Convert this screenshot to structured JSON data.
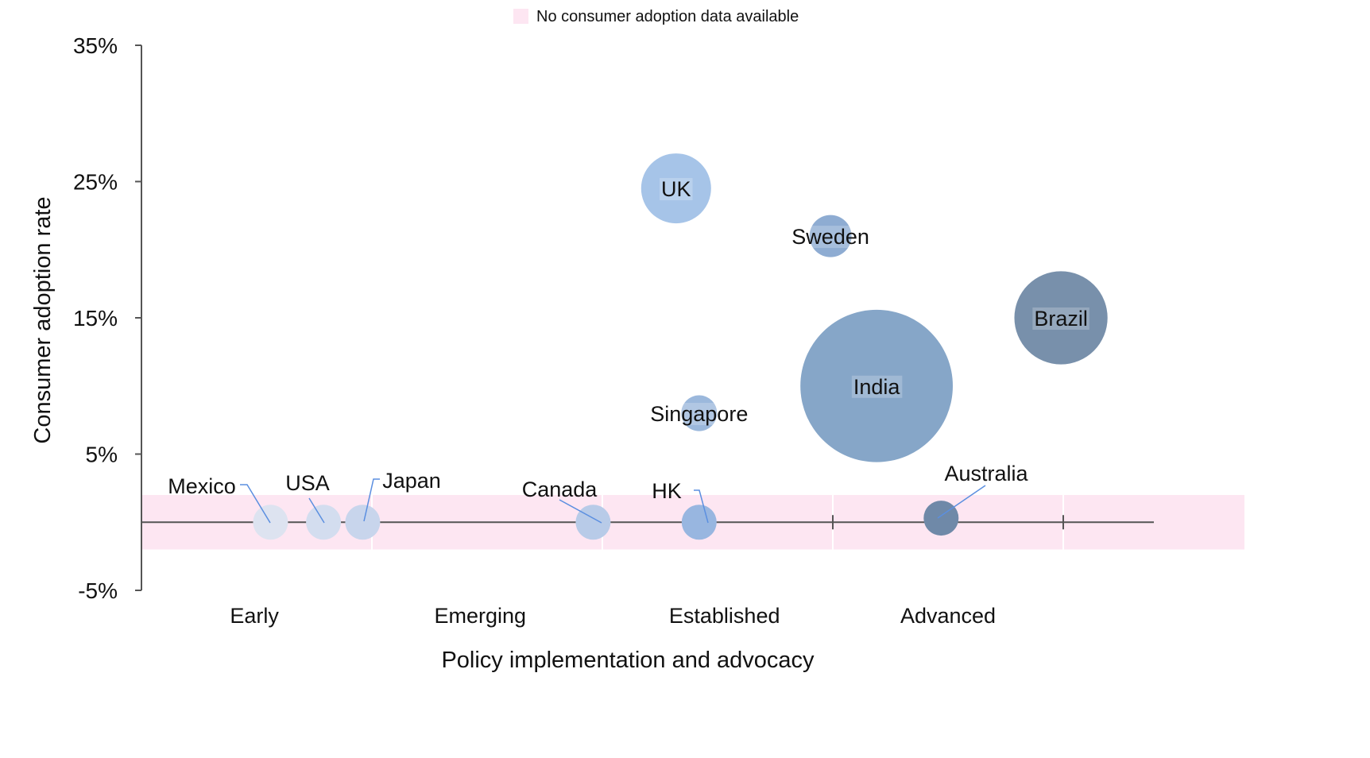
{
  "chart_data": {
    "type": "bubble",
    "legend": {
      "label": "No consumer adoption data available",
      "color": "#fde6f2",
      "placement": "top-center"
    },
    "xlabel": "Policy implementation and advocacy",
    "ylabel": "Consumer adoption rate",
    "categories": [
      "Early",
      "Emerging",
      "Established",
      "Advanced"
    ],
    "xlim": [
      0,
      4.4
    ],
    "ylim": [
      -5,
      35
    ],
    "ytick_values": [
      -5,
      5,
      15,
      25,
      35
    ],
    "ytick_labels": [
      "-5%",
      "5%",
      "15%",
      "25%",
      "35%"
    ],
    "no_data_band": [
      -2,
      2
    ],
    "grid": false,
    "points": [
      {
        "name": "Mexico",
        "x": 0.56,
        "y": 0,
        "size": 1.0,
        "color": "#dde3f0",
        "no_data": true
      },
      {
        "name": "USA",
        "x": 0.79,
        "y": 0,
        "size": 1.0,
        "color": "#d3ddef",
        "no_data": true
      },
      {
        "name": "Japan",
        "x": 0.96,
        "y": 0,
        "size": 1.0,
        "color": "#c8d5ec",
        "no_data": true
      },
      {
        "name": "Canada",
        "x": 1.96,
        "y": 0,
        "size": 1.0,
        "color": "#b8cbe8",
        "no_data": true
      },
      {
        "name": "HK",
        "x": 2.42,
        "y": 0,
        "size": 1.0,
        "color": "#98b6e0",
        "no_data": true
      },
      {
        "name": "Australia",
        "x": 3.47,
        "y": 0.3,
        "size": 1.0,
        "color": "#6f89a8",
        "no_data": true
      },
      {
        "name": "UK",
        "x": 2.32,
        "y": 24.5,
        "size": 4.0,
        "color": "#a6c4e8",
        "no_data": false
      },
      {
        "name": "Sweden",
        "x": 2.99,
        "y": 21,
        "size": 1.45,
        "color": "#8eacd2",
        "no_data": false
      },
      {
        "name": "Singapore",
        "x": 2.42,
        "y": 8,
        "size": 1.05,
        "color": "#9bb8dc",
        "no_data": false
      },
      {
        "name": "India",
        "x": 3.19,
        "y": 10,
        "size": 19.0,
        "color": "#86a6c8",
        "no_data": false
      },
      {
        "name": "Brazil",
        "x": 3.99,
        "y": 15,
        "size": 7.1,
        "color": "#7890ab",
        "no_data": false
      }
    ]
  }
}
